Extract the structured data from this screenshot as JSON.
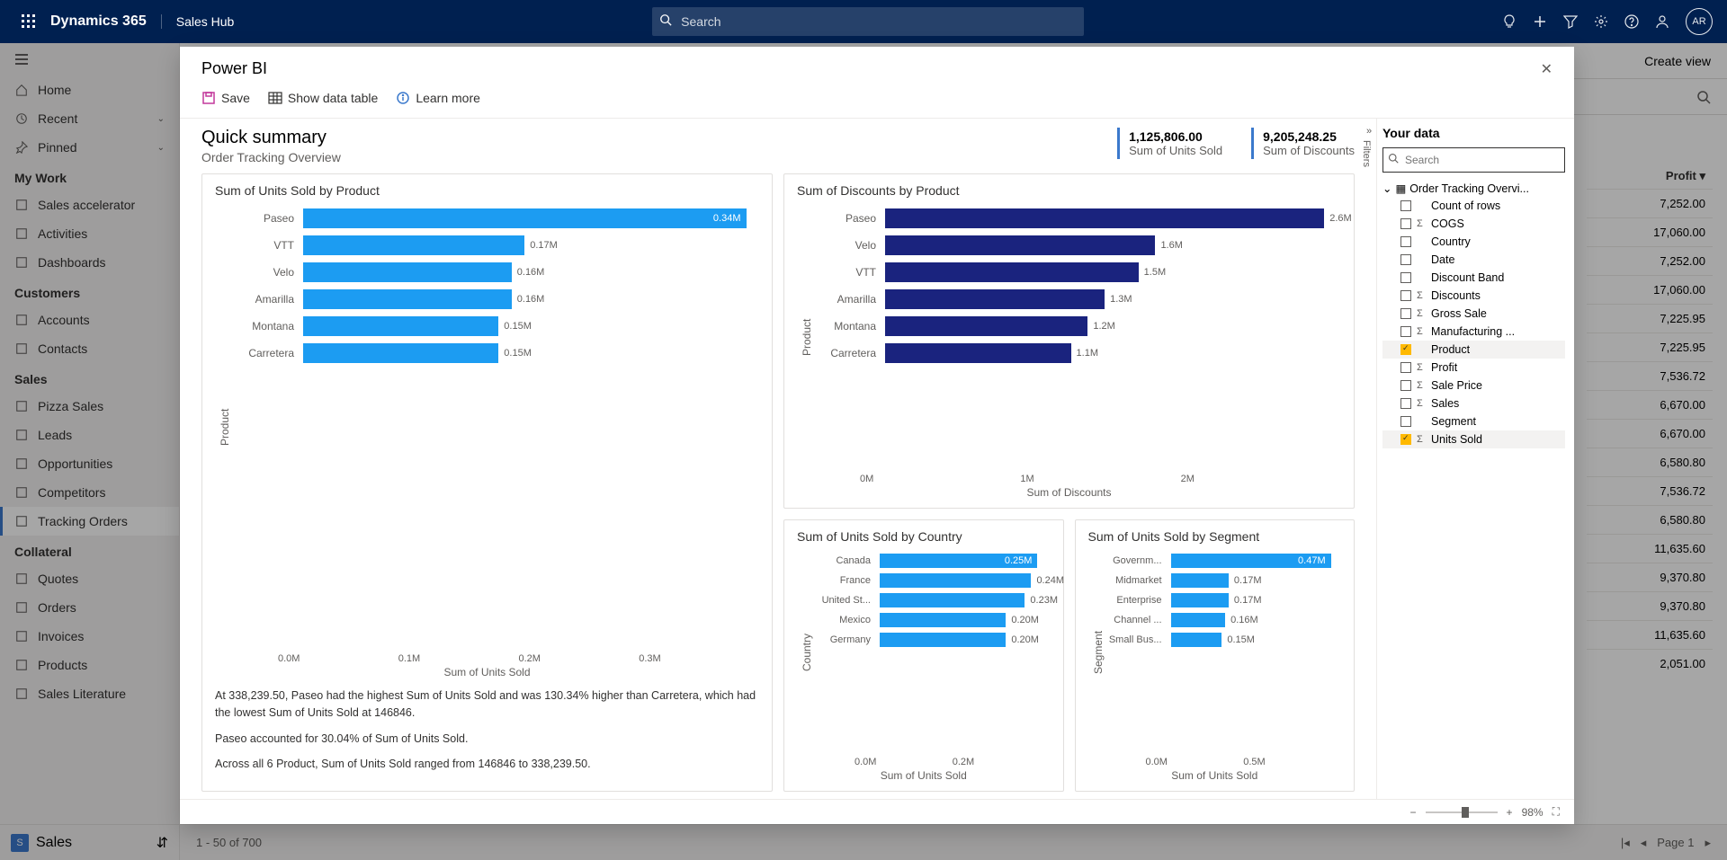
{
  "topbar": {
    "brand": "Dynamics 365",
    "area": "Sales Hub",
    "search_placeholder": "Search",
    "avatar": "AR"
  },
  "leftnav": {
    "home": "Home",
    "recent": "Recent",
    "pinned": "Pinned",
    "groups": [
      {
        "label": "My Work",
        "items": [
          "Sales accelerator",
          "Activities",
          "Dashboards"
        ]
      },
      {
        "label": "Customers",
        "items": [
          "Accounts",
          "Contacts"
        ]
      },
      {
        "label": "Sales",
        "items": [
          "Pizza Sales",
          "Leads",
          "Opportunities",
          "Competitors",
          "Tracking Orders"
        ]
      },
      {
        "label": "Collateral",
        "items": [
          "Quotes",
          "Orders",
          "Invoices",
          "Products",
          "Sales Literature"
        ]
      }
    ],
    "active": "Tracking Orders",
    "area_switch": "Sales"
  },
  "backdrop": {
    "create_view": "Create view",
    "profit_header": "Profit ▾",
    "profit_values": [
      "7,252.00",
      "17,060.00",
      "7,252.00",
      "17,060.00",
      "7,225.95",
      "7,225.95",
      "7,536.72",
      "6,670.00",
      "6,670.00",
      "6,580.80",
      "7,536.72",
      "6,580.80",
      "11,635.60",
      "9,370.80",
      "9,370.80",
      "11,635.60",
      "2,051.00"
    ],
    "pager_left": "1 - 50 of 700",
    "pager_right": "Page 1"
  },
  "modal": {
    "title": "Power BI",
    "toolbar": {
      "save": "Save",
      "showdata": "Show data table",
      "learn": "Learn more"
    },
    "summary": {
      "title": "Quick summary",
      "subtitle": "Order Tracking Overview"
    },
    "kpi1": {
      "value": "1,125,806.00",
      "label": "Sum of Units Sold"
    },
    "kpi2": {
      "value": "9,205,248.25",
      "label": "Sum of Discounts"
    },
    "zoom": "98%"
  },
  "chart_units_product": {
    "title": "Sum of Units Sold by Product",
    "ylabel": "Product",
    "xlabel": "Sum of Units Sold",
    "color": "#1c9cf2",
    "max": 0.35,
    "xticks": [
      "0.0M",
      "0.1M",
      "0.2M",
      "0.3M"
    ],
    "bars": [
      {
        "cat": "Paseo",
        "val": 0.34,
        "label": "0.34M",
        "inside": true
      },
      {
        "cat": "VTT",
        "val": 0.17,
        "label": "0.17M",
        "inside": false
      },
      {
        "cat": "Velo",
        "val": 0.16,
        "label": "0.16M",
        "inside": false
      },
      {
        "cat": "Amarilla",
        "val": 0.16,
        "label": "0.16M",
        "inside": false
      },
      {
        "cat": "Montana",
        "val": 0.15,
        "label": "0.15M",
        "inside": false
      },
      {
        "cat": "Carretera",
        "val": 0.15,
        "label": "0.15M",
        "inside": false
      }
    ],
    "insights": [
      "At 338,239.50, Paseo had the highest Sum of Units Sold and was 130.34% higher than Carretera, which had the lowest Sum of Units Sold at 146846.",
      "Paseo accounted for 30.04% of Sum of Units Sold.",
      "Across all 6 Product, Sum of Units Sold ranged from 146846 to 338,239.50."
    ]
  },
  "chart_disc_product": {
    "title": "Sum of Discounts by Product",
    "ylabel": "Product",
    "xlabel": "Sum of Discounts",
    "color": "#1a237e",
    "max": 2.7,
    "xticks": [
      "0M",
      "1M",
      "2M"
    ],
    "bars": [
      {
        "cat": "Paseo",
        "val": 2.6,
        "label": "2.6M",
        "inside": false
      },
      {
        "cat": "Velo",
        "val": 1.6,
        "label": "1.6M",
        "inside": false
      },
      {
        "cat": "VTT",
        "val": 1.5,
        "label": "1.5M",
        "inside": false
      },
      {
        "cat": "Amarilla",
        "val": 1.3,
        "label": "1.3M",
        "inside": false
      },
      {
        "cat": "Montana",
        "val": 1.2,
        "label": "1.2M",
        "inside": false
      },
      {
        "cat": "Carretera",
        "val": 1.1,
        "label": "1.1M",
        "inside": false
      }
    ]
  },
  "chart_units_country": {
    "title": "Sum of Units Sold by Country",
    "ylabel": "Country",
    "xlabel": "Sum of Units Sold",
    "color": "#1c9cf2",
    "max": 0.27,
    "xticks": [
      "0.0M",
      "0.2M"
    ],
    "bars": [
      {
        "cat": "Canada",
        "val": 0.25,
        "label": "0.25M",
        "inside": true
      },
      {
        "cat": "France",
        "val": 0.24,
        "label": "0.24M",
        "inside": false
      },
      {
        "cat": "United St...",
        "val": 0.23,
        "label": "0.23M",
        "inside": false
      },
      {
        "cat": "Mexico",
        "val": 0.2,
        "label": "0.20M",
        "inside": false
      },
      {
        "cat": "Germany",
        "val": 0.2,
        "label": "0.20M",
        "inside": false
      }
    ]
  },
  "chart_units_segment": {
    "title": "Sum of Units Sold by Segment",
    "ylabel": "Segment",
    "xlabel": "Sum of Units Sold",
    "color": "#1c9cf2",
    "max": 0.5,
    "xticks": [
      "0.0M",
      "0.5M"
    ],
    "bars": [
      {
        "cat": "Governm...",
        "val": 0.47,
        "label": "0.47M",
        "inside": true
      },
      {
        "cat": "Midmarket",
        "val": 0.17,
        "label": "0.17M",
        "inside": false
      },
      {
        "cat": "Enterprise",
        "val": 0.17,
        "label": "0.17M",
        "inside": false
      },
      {
        "cat": "Channel ...",
        "val": 0.16,
        "label": "0.16M",
        "inside": false
      },
      {
        "cat": "Small Bus...",
        "val": 0.15,
        "label": "0.15M",
        "inside": false
      }
    ]
  },
  "datapanel": {
    "title": "Your data",
    "search_placeholder": "Search",
    "filters": "Filters",
    "root": "Order Tracking Overvi...",
    "fields": [
      {
        "name": "Count of rows",
        "sigma": false,
        "checked": false
      },
      {
        "name": "COGS",
        "sigma": true,
        "checked": false
      },
      {
        "name": "Country",
        "sigma": false,
        "checked": false
      },
      {
        "name": "Date",
        "sigma": false,
        "checked": false
      },
      {
        "name": "Discount Band",
        "sigma": false,
        "checked": false
      },
      {
        "name": "Discounts",
        "sigma": true,
        "checked": false
      },
      {
        "name": "Gross Sale",
        "sigma": true,
        "checked": false
      },
      {
        "name": "Manufacturing ...",
        "sigma": true,
        "checked": false
      },
      {
        "name": "Product",
        "sigma": false,
        "checked": true
      },
      {
        "name": "Profit",
        "sigma": true,
        "checked": false
      },
      {
        "name": "Sale Price",
        "sigma": true,
        "checked": false
      },
      {
        "name": "Sales",
        "sigma": true,
        "checked": false
      },
      {
        "name": "Segment",
        "sigma": false,
        "checked": false
      },
      {
        "name": "Units Sold",
        "sigma": true,
        "checked": true
      }
    ]
  }
}
